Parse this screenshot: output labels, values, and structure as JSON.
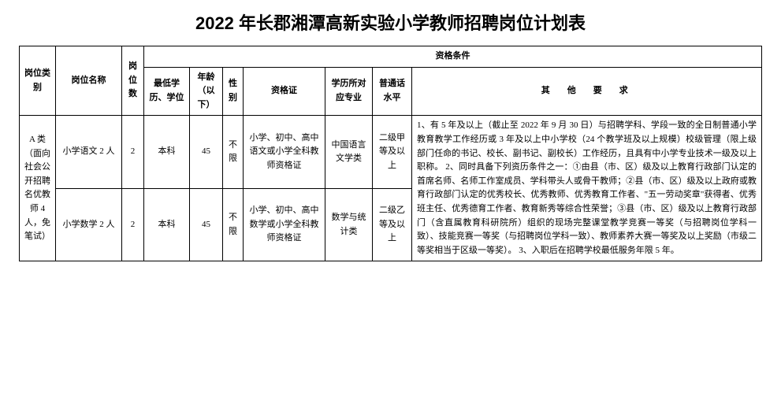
{
  "title": "2022 年长郡湘潭高新实验小学教师招聘岗位计划表",
  "headers": {
    "category": "岗位类别",
    "posname": "岗位名称",
    "count": "岗位数",
    "qualification_group": "资格条件",
    "min_edu": "最低学历、学位",
    "age": "年龄（以下）",
    "gender": "性别",
    "cert": "资格证",
    "major": "学历所对应专业",
    "mandarin": "普通话水平",
    "other": "其　他　要　求"
  },
  "rows": [
    {
      "category": "A 类（面向社会公开招聘名优教师 4 人，免笔试）",
      "posname": "小学语文 2 人",
      "count": "2",
      "min_edu": "本科",
      "age": "45",
      "gender": "不限",
      "cert": "小学、初中、高中语文或小学全科教师资格证",
      "major": "中国语言文学类",
      "mandarin": "二级甲等及以上",
      "other": ""
    },
    {
      "category": "",
      "posname": "小学数学 2 人",
      "count": "2",
      "min_edu": "本科",
      "age": "45",
      "gender": "不限",
      "cert": "小学、初中、高中数学或小学全科教师资格证",
      "major": "数学与统计类",
      "mandarin": "二级乙等及以上",
      "other": "1、有 5 年及以上（截止至 2022 年 9 月 30 日）与招聘学科、学段一致的全日制普通小学教育教学工作经历或 3 年及以上中小学校（24 个教学班及以上规模）校级管理（限上级部门任命的书记、校长、副书记、副校长）工作经历，且具有中小学专业技术一级及以上职称。\n2、同时具备下列资历条件之一：①由县（市、区）级及以上教育行政部门认定的首席名师、名师工作室成员、学科带头人或骨干教师；②县（市、区）级及以上政府或教育行政部门认定的优秀校长、优秀教师、优秀教育工作者、\"五一劳动奖章\"获得者、优秀班主任、优秀德育工作者、教育新秀等综合性荣誉；③县（市、区）级及以上教育行政部门（含直属教育科研院所）组织的现场完整课堂教学竞赛一等奖（与招聘岗位学科一致）、技能竞赛一等奖（与招聘岗位学科一致）、教师素养大赛一等奖及以上奖励（市级二等奖相当于区级一等奖）。\n3、入职后在招聘学校最低服务年限 5 年。"
    }
  ],
  "colors": {
    "text": "#000000",
    "background": "#ffffff",
    "border": "#000000"
  }
}
